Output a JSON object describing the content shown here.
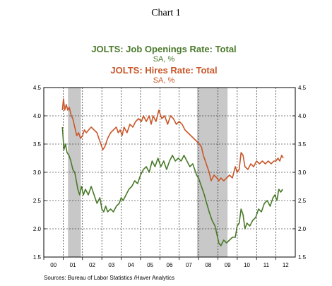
{
  "page": {
    "title": "Chart 1",
    "source": "Sources:  Bureau of Labor Statistics /Haver Analytics"
  },
  "colors": {
    "openings": "#4a7a2a",
    "hires": "#c9572a",
    "recession": "#c8c8c8",
    "grid": "#000000"
  },
  "chart_data": {
    "type": "line",
    "ylim": [
      1.5,
      4.5
    ],
    "yticks": [
      "4.5",
      "4.0",
      "3.5",
      "3.0",
      "2.5",
      "2.0",
      "1.5"
    ],
    "xlim": [
      2000.0,
      2013.0
    ],
    "xticks": [
      "00",
      "01",
      "02",
      "03",
      "04",
      "05",
      "06",
      "07",
      "08",
      "09",
      "10",
      "11",
      "12"
    ],
    "grid": true,
    "recessions": [
      [
        2001.25,
        2001.92
      ],
      [
        2007.92,
        2009.5
      ]
    ],
    "series": [
      {
        "name": "JOLTS: Job Openings Rate: Total",
        "unit": "SA, %",
        "color": "#4a7a2a",
        "points": [
          [
            2000.96,
            3.8
          ],
          [
            2001.04,
            3.4
          ],
          [
            2001.12,
            3.5
          ],
          [
            2001.2,
            3.35
          ],
          [
            2001.3,
            3.3
          ],
          [
            2001.4,
            3.2
          ],
          [
            2001.5,
            3.05
          ],
          [
            2001.6,
            3.0
          ],
          [
            2001.68,
            2.85
          ],
          [
            2001.76,
            2.7
          ],
          [
            2001.85,
            2.6
          ],
          [
            2001.95,
            2.75
          ],
          [
            2002.05,
            2.6
          ],
          [
            2002.15,
            2.7
          ],
          [
            2002.3,
            2.6
          ],
          [
            2002.45,
            2.75
          ],
          [
            2002.6,
            2.6
          ],
          [
            2002.75,
            2.45
          ],
          [
            2002.9,
            2.55
          ],
          [
            2003.0,
            2.35
          ],
          [
            2003.1,
            2.3
          ],
          [
            2003.2,
            2.4
          ],
          [
            2003.3,
            2.3
          ],
          [
            2003.45,
            2.35
          ],
          [
            2003.6,
            2.3
          ],
          [
            2003.75,
            2.4
          ],
          [
            2003.9,
            2.45
          ],
          [
            2004.0,
            2.55
          ],
          [
            2004.1,
            2.5
          ],
          [
            2004.25,
            2.6
          ],
          [
            2004.4,
            2.7
          ],
          [
            2004.55,
            2.75
          ],
          [
            2004.7,
            2.85
          ],
          [
            2004.85,
            2.8
          ],
          [
            2005.0,
            2.95
          ],
          [
            2005.15,
            3.05
          ],
          [
            2005.3,
            3.1
          ],
          [
            2005.45,
            3.0
          ],
          [
            2005.6,
            3.2
          ],
          [
            2005.75,
            3.1
          ],
          [
            2005.9,
            3.25
          ],
          [
            2006.05,
            3.1
          ],
          [
            2006.2,
            3.2
          ],
          [
            2006.35,
            3.05
          ],
          [
            2006.5,
            3.2
          ],
          [
            2006.65,
            3.3
          ],
          [
            2006.8,
            3.2
          ],
          [
            2006.95,
            3.25
          ],
          [
            2007.1,
            3.2
          ],
          [
            2007.25,
            3.3
          ],
          [
            2007.4,
            3.2
          ],
          [
            2007.55,
            3.1
          ],
          [
            2007.7,
            3.15
          ],
          [
            2007.8,
            3.05
          ],
          [
            2007.9,
            2.95
          ],
          [
            2008.0,
            2.9
          ],
          [
            2008.1,
            2.8
          ],
          [
            2008.2,
            2.7
          ],
          [
            2008.3,
            2.6
          ],
          [
            2008.42,
            2.45
          ],
          [
            2008.55,
            2.3
          ],
          [
            2008.7,
            2.15
          ],
          [
            2008.85,
            2.05
          ],
          [
            2008.95,
            1.9
          ],
          [
            2009.05,
            1.75
          ],
          [
            2009.15,
            1.7
          ],
          [
            2009.3,
            1.8
          ],
          [
            2009.45,
            1.75
          ],
          [
            2009.6,
            1.8
          ],
          [
            2009.75,
            1.85
          ],
          [
            2009.9,
            1.85
          ],
          [
            2010.0,
            2.05
          ],
          [
            2010.1,
            2.1
          ],
          [
            2010.2,
            2.35
          ],
          [
            2010.3,
            2.25
          ],
          [
            2010.4,
            2.0
          ],
          [
            2010.5,
            2.1
          ],
          [
            2010.65,
            2.05
          ],
          [
            2010.8,
            2.15
          ],
          [
            2010.95,
            2.2
          ],
          [
            2011.1,
            2.35
          ],
          [
            2011.25,
            2.3
          ],
          [
            2011.4,
            2.45
          ],
          [
            2011.55,
            2.5
          ],
          [
            2011.7,
            2.4
          ],
          [
            2011.85,
            2.55
          ],
          [
            2011.95,
            2.6
          ],
          [
            2012.05,
            2.5
          ],
          [
            2012.15,
            2.7
          ],
          [
            2012.25,
            2.65
          ],
          [
            2012.35,
            2.7
          ]
        ]
      },
      {
        "name": "JOLTS: Hires Rate: Total",
        "unit": "SA, %",
        "color": "#c9572a",
        "points": [
          [
            2000.96,
            4.1
          ],
          [
            2001.02,
            4.3
          ],
          [
            2001.08,
            4.1
          ],
          [
            2001.16,
            4.2
          ],
          [
            2001.24,
            4.1
          ],
          [
            2001.32,
            4.15
          ],
          [
            2001.42,
            4.0
          ],
          [
            2001.5,
            3.95
          ],
          [
            2001.6,
            3.8
          ],
          [
            2001.7,
            3.65
          ],
          [
            2001.8,
            3.7
          ],
          [
            2001.9,
            3.6
          ],
          [
            2002.0,
            3.65
          ],
          [
            2002.1,
            3.75
          ],
          [
            2002.2,
            3.7
          ],
          [
            2002.32,
            3.75
          ],
          [
            2002.45,
            3.8
          ],
          [
            2002.6,
            3.75
          ],
          [
            2002.75,
            3.7
          ],
          [
            2002.85,
            3.6
          ],
          [
            2002.95,
            3.5
          ],
          [
            2003.05,
            3.4
          ],
          [
            2003.15,
            3.45
          ],
          [
            2003.3,
            3.6
          ],
          [
            2003.45,
            3.7
          ],
          [
            2003.6,
            3.75
          ],
          [
            2003.75,
            3.8
          ],
          [
            2003.85,
            3.7
          ],
          [
            2003.95,
            3.75
          ],
          [
            2004.05,
            3.65
          ],
          [
            2004.15,
            3.8
          ],
          [
            2004.3,
            3.7
          ],
          [
            2004.45,
            3.85
          ],
          [
            2004.6,
            3.8
          ],
          [
            2004.75,
            3.9
          ],
          [
            2004.9,
            3.95
          ],
          [
            2005.05,
            3.9
          ],
          [
            2005.15,
            4.0
          ],
          [
            2005.3,
            3.9
          ],
          [
            2005.45,
            4.0
          ],
          [
            2005.55,
            3.85
          ],
          [
            2005.65,
            4.0
          ],
          [
            2005.8,
            3.9
          ],
          [
            2005.95,
            4.1
          ],
          [
            2006.1,
            3.95
          ],
          [
            2006.25,
            4.0
          ],
          [
            2006.4,
            3.85
          ],
          [
            2006.55,
            4.0
          ],
          [
            2006.7,
            3.95
          ],
          [
            2006.85,
            3.85
          ],
          [
            2007.0,
            3.9
          ],
          [
            2007.15,
            3.85
          ],
          [
            2007.3,
            3.75
          ],
          [
            2007.45,
            3.7
          ],
          [
            2007.6,
            3.65
          ],
          [
            2007.75,
            3.6
          ],
          [
            2007.9,
            3.55
          ],
          [
            2008.05,
            3.5
          ],
          [
            2008.15,
            3.45
          ],
          [
            2008.25,
            3.3
          ],
          [
            2008.4,
            3.15
          ],
          [
            2008.55,
            3.0
          ],
          [
            2008.65,
            2.85
          ],
          [
            2008.8,
            2.95
          ],
          [
            2008.95,
            2.9
          ],
          [
            2009.05,
            2.85
          ],
          [
            2009.15,
            2.9
          ],
          [
            2009.3,
            2.85
          ],
          [
            2009.45,
            2.9
          ],
          [
            2009.6,
            2.95
          ],
          [
            2009.75,
            2.9
          ],
          [
            2009.9,
            3.1
          ],
          [
            2010.0,
            3.0
          ],
          [
            2010.1,
            3.05
          ],
          [
            2010.2,
            3.35
          ],
          [
            2010.3,
            3.3
          ],
          [
            2010.4,
            3.1
          ],
          [
            2010.55,
            3.05
          ],
          [
            2010.7,
            3.15
          ],
          [
            2010.85,
            3.1
          ],
          [
            2011.0,
            3.2
          ],
          [
            2011.15,
            3.15
          ],
          [
            2011.3,
            3.2
          ],
          [
            2011.45,
            3.15
          ],
          [
            2011.6,
            3.2
          ],
          [
            2011.75,
            3.15
          ],
          [
            2011.9,
            3.2
          ],
          [
            2012.0,
            3.2
          ],
          [
            2012.1,
            3.25
          ],
          [
            2012.2,
            3.2
          ],
          [
            2012.3,
            3.3
          ],
          [
            2012.38,
            3.25
          ]
        ]
      }
    ]
  }
}
